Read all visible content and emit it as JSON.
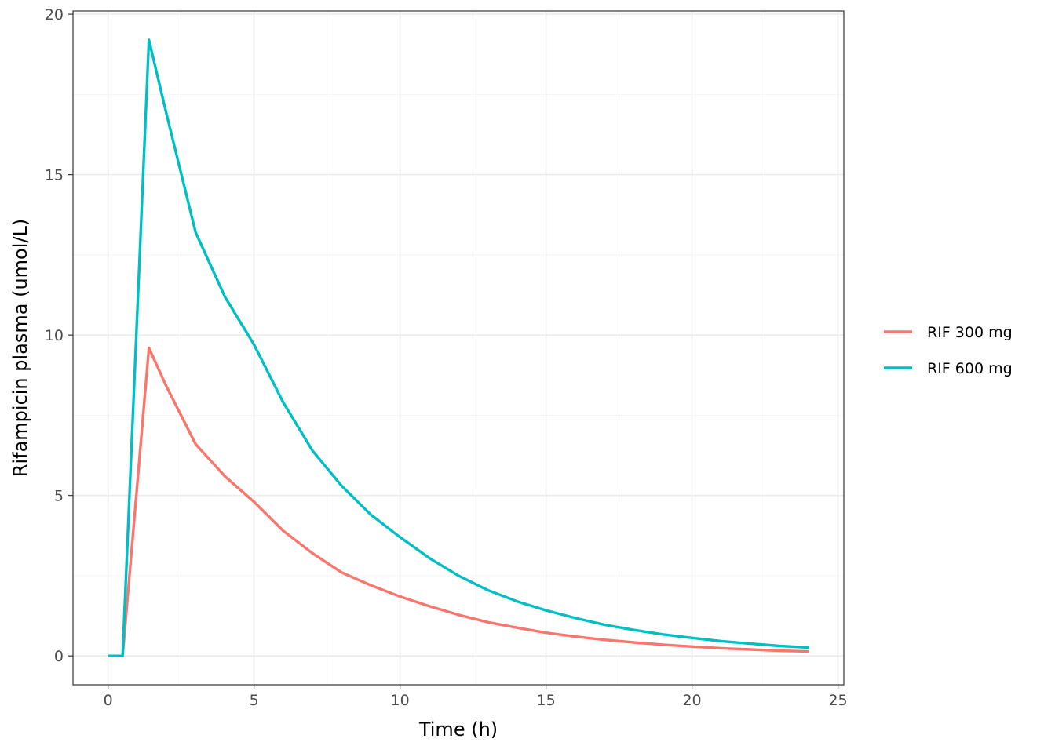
{
  "chart_data": {
    "type": "line",
    "xlabel": "Time (h)",
    "ylabel": "Rifampicin plasma (umol/L)",
    "xlim": [
      -1.2,
      25.2
    ],
    "ylim": [
      -0.9,
      20.1
    ],
    "x_ticks": [
      0,
      5,
      10,
      15,
      20,
      25
    ],
    "x_tick_labels": [
      "0",
      "5",
      "10",
      "15",
      "20",
      "25"
    ],
    "y_ticks": [
      0,
      5,
      10,
      15,
      20
    ],
    "y_tick_labels": [
      "0",
      "5",
      "10",
      "15",
      "20"
    ],
    "x_minor_ticks": [
      2.5,
      7.5,
      12.5,
      17.5,
      22.5
    ],
    "y_minor_ticks": [
      2.5,
      7.5,
      12.5,
      17.5
    ],
    "grid": true,
    "legend_position": "right",
    "series": [
      {
        "name": "RIF 300 mg",
        "color": "#F8766D",
        "x": [
          0,
          0.5,
          1.4,
          2,
          3,
          4,
          5,
          6,
          7,
          8,
          9,
          10,
          11,
          12,
          13,
          14,
          15,
          16,
          17,
          18,
          19,
          20,
          21,
          22,
          23,
          24
        ],
        "y": [
          0,
          0,
          9.6,
          8.4,
          6.6,
          5.6,
          4.8,
          3.9,
          3.2,
          2.6,
          2.2,
          1.85,
          1.55,
          1.28,
          1.05,
          0.88,
          0.72,
          0.6,
          0.5,
          0.42,
          0.35,
          0.29,
          0.24,
          0.2,
          0.16,
          0.14
        ]
      },
      {
        "name": "RIF 600 mg",
        "color": "#00BFC4",
        "x": [
          0,
          0.5,
          1.4,
          2,
          3,
          4,
          5,
          6,
          7,
          8,
          9,
          10,
          11,
          12,
          13,
          14,
          15,
          16,
          17,
          18,
          19,
          20,
          21,
          22,
          23,
          24
        ],
        "y": [
          0,
          0,
          19.2,
          16.9,
          13.2,
          11.2,
          9.7,
          7.9,
          6.4,
          5.3,
          4.4,
          3.7,
          3.05,
          2.5,
          2.05,
          1.7,
          1.42,
          1.18,
          0.97,
          0.81,
          0.67,
          0.56,
          0.46,
          0.38,
          0.31,
          0.26
        ]
      }
    ]
  }
}
